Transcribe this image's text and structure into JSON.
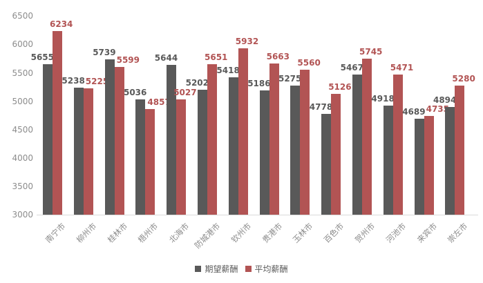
{
  "chart_data": {
    "type": "bar",
    "title": "",
    "categories": [
      "南宁市",
      "柳州市",
      "桂林市",
      "梧州市",
      "北海市",
      "防城港市",
      "钦州市",
      "贵港市",
      "玉林市",
      "百色市",
      "贺州市",
      "河池市",
      "来宾市",
      "崇左市"
    ],
    "series": [
      {
        "key": "expected-salary",
        "name": "期望薪酬",
        "color": "#595959",
        "values": [
          5655,
          5238,
          5739,
          5036,
          5644,
          5202,
          5418,
          5186,
          5275,
          4778,
          5467,
          4918,
          4689,
          4894
        ]
      },
      {
        "key": "average-salary",
        "name": "平均薪酬",
        "color": "#b25454",
        "values": [
          6234,
          5225,
          5599,
          4857,
          5027,
          5651,
          5932,
          5663,
          5560,
          5126,
          5745,
          5471,
          4735,
          5280
        ]
      }
    ],
    "ylim": [
      3000,
      6500
    ],
    "ytick_step": 500,
    "yticks": [
      6500,
      6000,
      5500,
      5000,
      4500,
      4000,
      3500,
      3000
    ],
    "grid": false,
    "data_labels": true,
    "legend_position": "bottom",
    "colors": {
      "axis_line": "#d9d9d9",
      "tick_label": "#8c8c8c",
      "background": "#ffffff"
    }
  }
}
